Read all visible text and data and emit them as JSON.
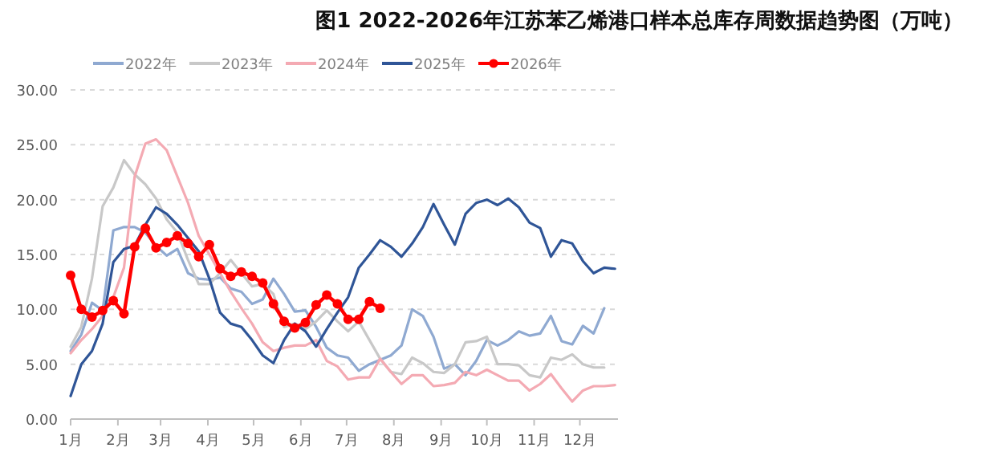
{
  "chart_data": {
    "type": "line",
    "title": "图1 2022-2026年江苏苯乙烯港口样本总库存周数据趋势图（万吨）",
    "x": [
      "--01-01",
      "--01-08",
      "--01-15",
      "--01-22",
      "--01-29",
      "--02-05",
      "--02-12",
      "--02-19",
      "--02-26",
      "--03-05",
      "--03-12",
      "--03-19",
      "--03-26",
      "--04-02",
      "--04-09",
      "--04-16",
      "--04-23",
      "--04-30",
      "--05-07",
      "--05-14",
      "--05-21",
      "--05-28",
      "--06-04",
      "--06-11",
      "--06-18",
      "--06-25",
      "--07-02",
      "--07-09",
      "--07-16",
      "--07-23",
      "--07-30",
      "--08-06",
      "--08-13",
      "--08-20",
      "--08-27",
      "--09-03",
      "--09-10",
      "--09-17",
      "--09-24",
      "--10-01",
      "--10-08",
      "--10-15",
      "--10-22",
      "--10-29",
      "--11-05",
      "--11-12",
      "--11-19",
      "--11-26",
      "--12-03",
      "--12-10",
      "--12-17",
      "--12-24"
    ],
    "xlim": [
      "--01-01",
      "--12-26"
    ],
    "xticks": [
      {
        "value": "--01-01",
        "label": "1月"
      },
      {
        "value": "--02-01",
        "label": "2月"
      },
      {
        "value": "--03-01",
        "label": "3月"
      },
      {
        "value": "--04-01",
        "label": "4月"
      },
      {
        "value": "--05-01",
        "label": "5月"
      },
      {
        "value": "--06-01",
        "label": "6月"
      },
      {
        "value": "--07-01",
        "label": "7月"
      },
      {
        "value": "--08-01",
        "label": "8月"
      },
      {
        "value": "--09-01",
        "label": "9月"
      },
      {
        "value": "--10-01",
        "label": "10月"
      },
      {
        "value": "--11-01",
        "label": "11月"
      },
      {
        "value": "--12-01",
        "label": "12月"
      }
    ],
    "ylim": [
      0,
      30
    ],
    "yticks": [
      {
        "value": 0,
        "label": "0.00"
      },
      {
        "value": 5,
        "label": "5.00"
      },
      {
        "value": 10,
        "label": "10.00"
      },
      {
        "value": 15,
        "label": "15.00"
      },
      {
        "value": 20,
        "label": "20.00"
      },
      {
        "value": 25,
        "label": "25.00"
      },
      {
        "value": 30,
        "label": "30.00"
      }
    ],
    "grid": "y",
    "legend": "top",
    "series": [
      {
        "name": "2022年",
        "color": "#8fa9d1",
        "values": [
          6.2,
          7.7,
          10.6,
          9.9,
          17.2,
          17.5,
          17.5,
          17.0,
          15.8,
          14.9,
          15.5,
          13.3,
          12.8,
          12.7,
          12.9,
          11.9,
          11.6,
          10.5,
          10.9,
          12.8,
          11.4,
          9.8,
          9.9,
          8.4,
          6.5,
          5.8,
          5.6,
          4.4,
          5.0,
          5.4,
          5.8,
          6.7,
          10.0,
          9.4,
          7.5,
          4.6,
          5.0,
          4.0,
          5.3,
          7.2,
          6.7,
          7.2,
          8.0,
          7.6,
          7.8,
          9.4,
          7.1,
          6.8,
          8.5,
          7.8,
          10.1,
          null
        ]
      },
      {
        "name": "2023年",
        "color": "#c8c8c8",
        "values": [
          6.6,
          8.4,
          12.8,
          19.4,
          21.1,
          23.6,
          22.3,
          21.4,
          20.1,
          18.2,
          17.0,
          14.5,
          12.3,
          12.3,
          13.3,
          14.5,
          13.3,
          12.1,
          12.3,
          11.4,
          8.4,
          8.7,
          8.2,
          8.9,
          9.9,
          8.9,
          8.0,
          8.9,
          7.2,
          5.5,
          4.3,
          4.1,
          5.6,
          5.1,
          4.3,
          4.2,
          5.0,
          7.0,
          7.1,
          7.5,
          5.0,
          5.0,
          4.9,
          4.0,
          3.8,
          5.6,
          5.4,
          5.9,
          5.0,
          4.7,
          4.7,
          null
        ]
      },
      {
        "name": "2024年",
        "color": "#f4aab3",
        "values": [
          6.0,
          7.2,
          8.2,
          9.4,
          11.1,
          13.8,
          22.1,
          25.1,
          25.5,
          24.5,
          22.1,
          19.7,
          16.7,
          15.0,
          13.3,
          11.6,
          10.1,
          8.7,
          7.0,
          6.2,
          6.5,
          6.7,
          6.7,
          7.2,
          5.3,
          4.8,
          3.6,
          3.8,
          3.8,
          5.5,
          4.3,
          3.2,
          4.0,
          4.0,
          3.0,
          3.1,
          3.3,
          4.3,
          4.0,
          4.5,
          4.0,
          3.5,
          3.5,
          2.6,
          3.2,
          4.1,
          2.8,
          1.6,
          2.6,
          3.0,
          3.0,
          3.1
        ]
      },
      {
        "name": "2025年",
        "color": "#2f5597",
        "values": [
          2.1,
          5.0,
          6.2,
          8.7,
          14.3,
          15.5,
          15.8,
          17.7,
          19.3,
          18.7,
          17.7,
          16.5,
          15.3,
          12.8,
          9.7,
          8.7,
          8.4,
          7.2,
          5.8,
          5.1,
          7.2,
          8.7,
          8.0,
          6.6,
          8.2,
          9.7,
          11.1,
          13.8,
          15.0,
          16.3,
          15.7,
          14.8,
          16.0,
          17.5,
          19.6,
          17.7,
          15.9,
          18.7,
          19.7,
          20.0,
          19.5,
          20.1,
          19.3,
          17.9,
          17.4,
          14.8,
          16.3,
          16.0,
          14.4,
          13.3,
          13.8,
          13.7
        ]
      },
      {
        "name": "2026年",
        "color": "#ff0000",
        "marker": "circle",
        "values": [
          13.1,
          10.0,
          9.3,
          9.9,
          10.8,
          9.6,
          15.7,
          17.4,
          15.6,
          16.1,
          16.7,
          16.0,
          14.8,
          15.9,
          13.7,
          13.0,
          13.4,
          13.0,
          12.4,
          10.5,
          8.9,
          8.3,
          8.8,
          10.4,
          11.3,
          10.5,
          9.1,
          9.1,
          10.7,
          10.1,
          null,
          null,
          null,
          null,
          null,
          null,
          null,
          null,
          null,
          null,
          null,
          null,
          null,
          null,
          null,
          null,
          null,
          null,
          null,
          null,
          null,
          null
        ]
      }
    ]
  }
}
